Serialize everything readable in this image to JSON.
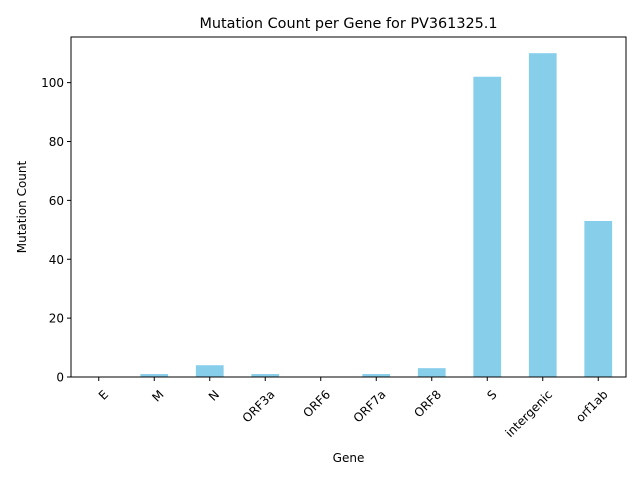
{
  "chart_data": {
    "type": "bar",
    "title": "Mutation Count per Gene for PV361325.1",
    "xlabel": "Gene",
    "ylabel": "Mutation Count",
    "categories": [
      "E",
      "M",
      "N",
      "ORF3a",
      "ORF6",
      "ORF7a",
      "ORF8",
      "S",
      "intergenic",
      "orf1ab"
    ],
    "values": [
      0,
      1,
      4,
      1,
      0,
      1,
      3,
      102,
      110,
      53
    ],
    "ylim": [
      0,
      115.5
    ],
    "yticks": [
      0,
      20,
      40,
      60,
      80,
      100
    ],
    "bar_color": "#87ceeb",
    "grid": false,
    "legend": "none"
  }
}
